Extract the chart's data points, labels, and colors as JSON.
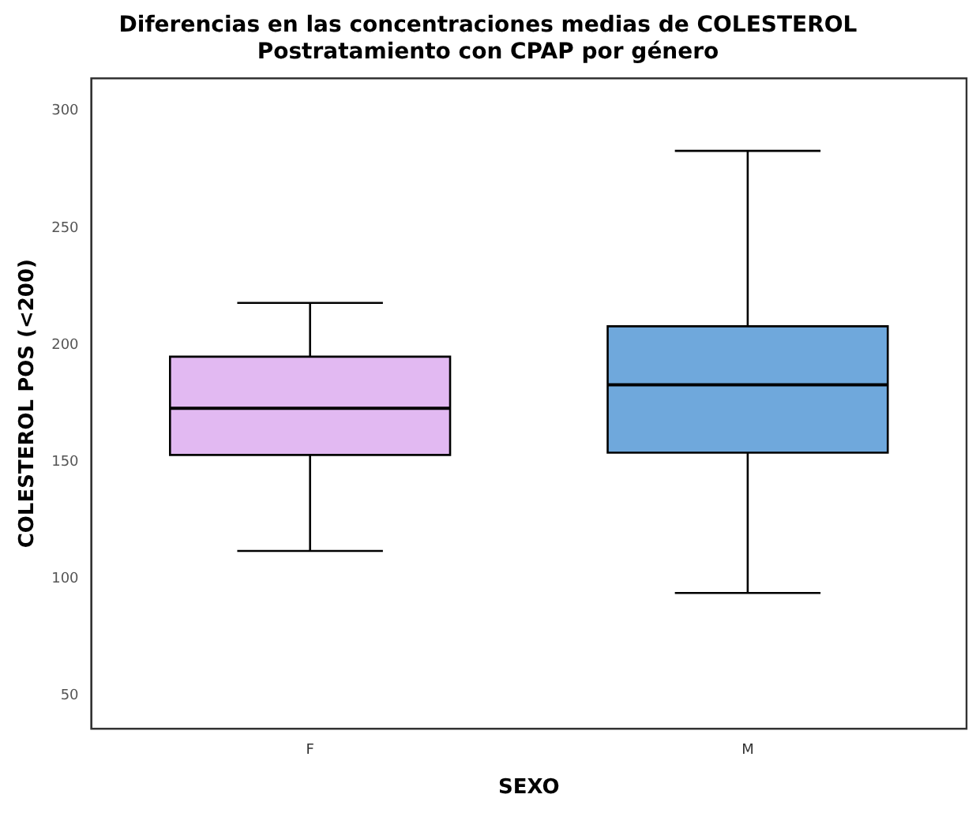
{
  "chart_data": {
    "type": "box",
    "title": "Diferencias en las concentraciones medias de COLESTEROL",
    "subtitle": "Postratamiento con CPAP por género",
    "xlabel": "SEXO",
    "ylabel": "COLESTEROL POS (<200)",
    "categories": [
      "F",
      "M"
    ],
    "colors": [
      "#e2b9f2",
      "#6fa8dc"
    ],
    "boxes": [
      {
        "low": 112,
        "q1": 153,
        "median": 173,
        "q3": 195,
        "high": 218
      },
      {
        "low": 94,
        "q1": 154,
        "median": 183,
        "q3": 208,
        "high": 283
      }
    ],
    "ylim": [
      36,
      314
    ],
    "yticks": [
      50,
      100,
      150,
      200,
      250,
      300
    ],
    "grid": false,
    "legend": false
  }
}
